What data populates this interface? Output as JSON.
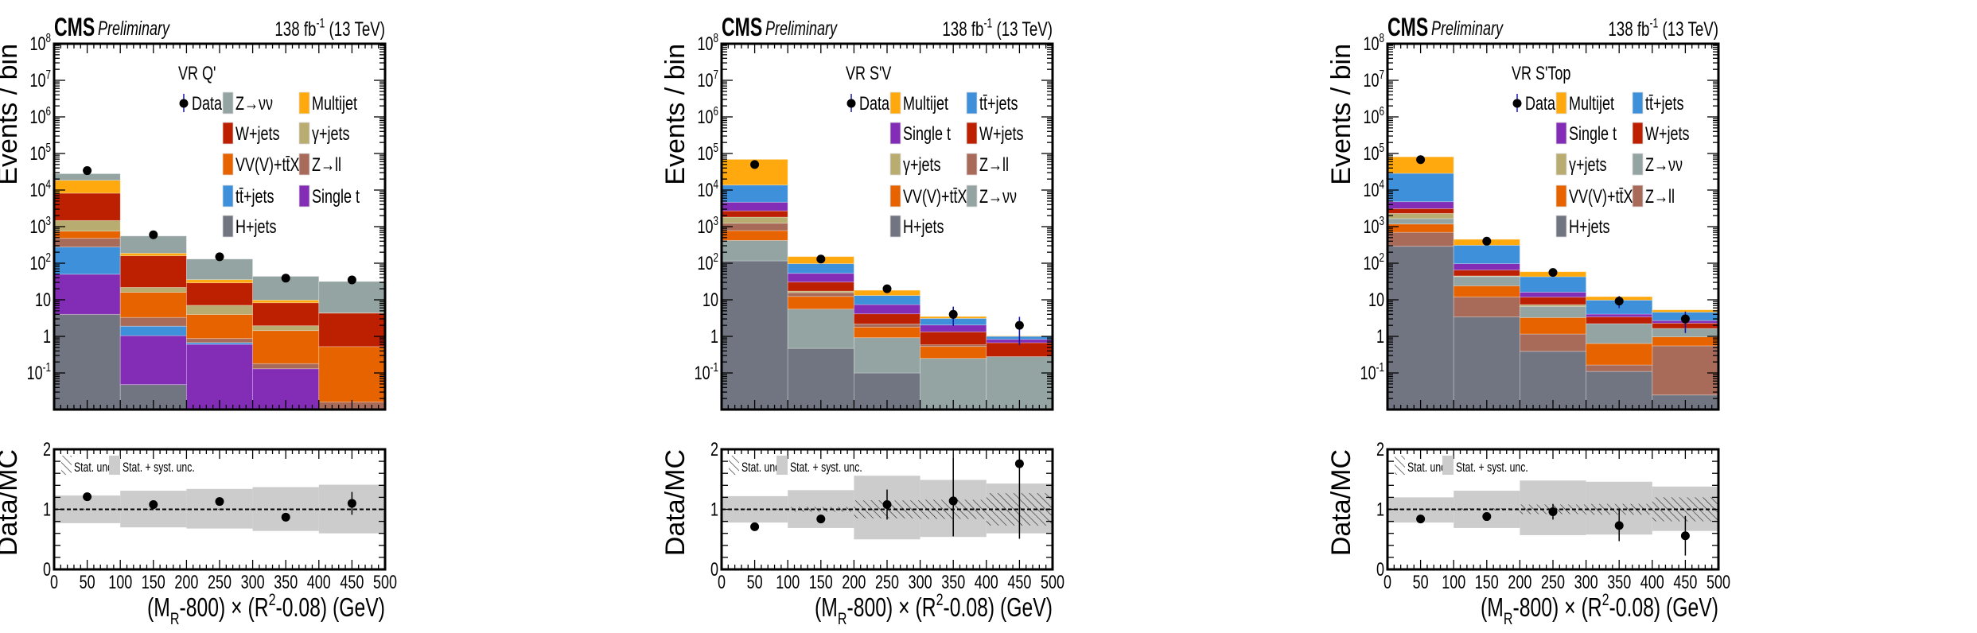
{
  "figure": {
    "experiment_label": "CMS",
    "status_label": "Preliminary",
    "lumi_label": "138 fb^{-1} (13 TeV)",
    "ylabel": "Events / bin",
    "ratio_ylabel": "Data/MC",
    "xlabel": "(M_{R}-800) × (R^{2}-0.08) (GeV)",
    "x_tick_labels": [
      "0",
      "50",
      "100",
      "150",
      "200",
      "250",
      "300",
      "350",
      "400",
      "450",
      "500"
    ],
    "y_tick_labels": [
      "10^{-1}",
      "1",
      "10",
      "10^{2}",
      "10^{3}",
      "10^{4}",
      "10^{5}",
      "10^{6}",
      "10^{7}",
      "10^{8}"
    ],
    "ratio_tick_labels": [
      "0",
      "1",
      "2"
    ],
    "ratio_legend": {
      "stat": "Stat. unc.",
      "syst": "Stat. + syst. unc."
    },
    "data_legend_label": "Data",
    "colors": {
      "Z→νν": "#94a4a2",
      "W+jets": "#bd1f01",
      "VV(V)+tt̄X": "#e76300",
      "tt̄+jets": "#3f90da",
      "H+jets": "#717581",
      "Multijet": "#ffa90e",
      "γ+jets": "#b9ac70",
      "Z→ll": "#a96b59",
      "Single t": "#832db6",
      "stat_syst_band": "#cccccc",
      "data_err_top": "#1a1aa8"
    }
  },
  "chart_data": [
    {
      "type": "bar",
      "stacked": true,
      "region_label": "VR Q'",
      "x_bin_edges": [
        0,
        100,
        200,
        300,
        400,
        500
      ],
      "xlim": [
        0,
        500
      ],
      "ylim": [
        0.01,
        100000000
      ],
      "y_scale": "log",
      "ratio_ylim": [
        0,
        2
      ],
      "legend_order": [
        "Z→νν",
        "Multijet",
        "W+jets",
        "γ+jets",
        "VV(V)+tt̄X",
        "Z→ll",
        "tt̄+jets",
        "Single t",
        "H+jets"
      ],
      "series": [
        {
          "name": "H+jets",
          "values": [
            4.0,
            0.048,
            0.005,
            0.005,
            0.005
          ]
        },
        {
          "name": "Single t",
          "values": [
            46,
            1.0,
            0.6,
            0.125,
            0
          ]
        },
        {
          "name": "tt̄+jets",
          "values": [
            227,
            0.85,
            0.07,
            0,
            0
          ]
        },
        {
          "name": "Z→ll",
          "values": [
            203,
            1.4,
            0.2,
            0.05,
            0.011
          ]
        },
        {
          "name": "VV(V)+tt̄X",
          "values": [
            275,
            12.7,
            3.1,
            1.26,
            0.51
          ]
        },
        {
          "name": "γ+jets",
          "values": [
            715,
            5.8,
            3.1,
            0.51,
            0
          ]
        },
        {
          "name": "W+jets",
          "values": [
            6730,
            138,
            22,
            6.35,
            3.8
          ]
        },
        {
          "name": "Multijet",
          "values": [
            10300,
            28,
            6.5,
            1.5,
            0.05
          ]
        },
        {
          "name": "Z→νν",
          "values": [
            9500,
            367,
            94.5,
            34,
            27.3
          ]
        }
      ],
      "data": [
        34000,
        600,
        150,
        39,
        35
      ],
      "ratio": {
        "values": [
          1.21,
          1.08,
          1.13,
          0.87,
          1.1
        ],
        "err_low": [
          0.01,
          0.04,
          0.06,
          0.07,
          0.19
        ],
        "err_high": [
          0.01,
          0.04,
          0.06,
          0.07,
          0.19
        ],
        "stat_unc": [
          0.01,
          0.01,
          0.01,
          0.01,
          0.01
        ],
        "syst_band_low": [
          0.77,
          0.7,
          0.68,
          0.64,
          0.6
        ],
        "syst_band_high": [
          1.23,
          1.31,
          1.34,
          1.37,
          1.41
        ]
      }
    },
    {
      "type": "bar",
      "stacked": true,
      "region_label": "VR S'V",
      "x_bin_edges": [
        0,
        100,
        200,
        300,
        400,
        500
      ],
      "xlim": [
        0,
        500
      ],
      "ylim": [
        0.01,
        100000000
      ],
      "y_scale": "log",
      "ratio_ylim": [
        0,
        2
      ],
      "legend_order": [
        "Multijet",
        "tt̄+jets",
        "Single t",
        "W+jets",
        "γ+jets",
        "Z→ll",
        "VV(V)+tt̄X",
        "Z→νν",
        "H+jets"
      ],
      "series": [
        {
          "name": "H+jets",
          "values": [
            116,
            0.47,
            0.1,
            0.005,
            0.005
          ]
        },
        {
          "name": "Z→νν",
          "values": [
            304,
            5.1,
            0.82,
            0.245,
            0.275
          ]
        },
        {
          "name": "VV(V)+tt̄X",
          "values": [
            360,
            6.8,
            0.87,
            0.28,
            0
          ]
        },
        {
          "name": "Z→ll",
          "values": [
            460,
            3.3,
            0.4,
            0.06,
            0
          ]
        },
        {
          "name": "γ+jets",
          "values": [
            580,
            1.6,
            0,
            0,
            0
          ]
        },
        {
          "name": "W+jets",
          "values": [
            880,
            13.3,
            1.94,
            0.74,
            0.39
          ]
        },
        {
          "name": "Single t",
          "values": [
            1960,
            22.4,
            3.27,
            0.72,
            0.16
          ]
        },
        {
          "name": "tt̄+jets",
          "values": [
            9040,
            44,
            5.7,
            1.05,
            0.17
          ]
        },
        {
          "name": "Multijet",
          "values": [
            55300,
            55,
            5.1,
            0.4,
            0.03
          ]
        }
      ],
      "data": [
        50000,
        130,
        20,
        4,
        2
      ],
      "ratio": {
        "values": [
          0.71,
          0.84,
          1.08,
          1.14,
          1.76
        ],
        "err_low": [
          0.01,
          0.07,
          0.25,
          0.59,
          1.25
        ],
        "err_high": [
          0.01,
          0.07,
          0.25,
          0.71,
          1.25
        ],
        "stat_unc": [
          0.01,
          0.04,
          0.15,
          0.16,
          0.27
        ],
        "syst_band_low": [
          0.78,
          0.69,
          0.5,
          0.54,
          0.6
        ],
        "syst_band_high": [
          1.22,
          1.32,
          1.56,
          1.49,
          1.43
        ]
      }
    },
    {
      "type": "bar",
      "stacked": true,
      "region_label": "VR S'Top",
      "x_bin_edges": [
        0,
        100,
        200,
        300,
        400,
        500
      ],
      "xlim": [
        0,
        500
      ],
      "ylim": [
        0.01,
        100000000
      ],
      "y_scale": "log",
      "ratio_ylim": [
        0,
        2
      ],
      "legend_order": [
        "Multijet",
        "tt̄+jets",
        "Single t",
        "W+jets",
        "γ+jets",
        "Z→νν",
        "VV(V)+tt̄X",
        "Z→ll",
        "H+jets"
      ],
      "series": [
        {
          "name": "H+jets",
          "values": [
            290,
            3.4,
            0.39,
            0.11,
            0.025
          ]
        },
        {
          "name": "Z→ll",
          "values": [
            410,
            8.6,
            0.77,
            0.055,
            0.525
          ]
        },
        {
          "name": "VV(V)+tt̄X",
          "values": [
            480,
            12,
            2.11,
            0.475,
            0.42
          ]
        },
        {
          "name": "Z→νν",
          "values": [
            480,
            19,
            3.33,
            1.59,
            0.68
          ]
        },
        {
          "name": "γ+jets",
          "values": [
            640,
            2,
            0.8,
            0,
            0
          ]
        },
        {
          "name": "W+jets",
          "values": [
            800,
            20,
            4.4,
            1.17,
            0.65
          ]
        },
        {
          "name": "Single t",
          "values": [
            1700,
            32,
            4.4,
            0.66,
            0.4
          ]
        },
        {
          "name": "tt̄+jets",
          "values": [
            23800,
            213,
            26.5,
            5.74,
            1.9
          ]
        },
        {
          "name": "Multijet",
          "values": [
            52400,
            140,
            15.8,
            2.4,
            0.7
          ]
        }
      ],
      "data": [
        68000,
        400,
        56,
        9.2,
        3.0
      ],
      "ratio": {
        "values": [
          0.84,
          0.88,
          0.96,
          0.73,
          0.56
        ],
        "err_low": [
          0.01,
          0.03,
          0.13,
          0.26,
          0.33
        ],
        "err_high": [
          0.01,
          0.03,
          0.13,
          0.27,
          0.33
        ],
        "stat_unc": [
          0.01,
          0.02,
          0.08,
          0.09,
          0.2
        ],
        "syst_band_low": [
          0.78,
          0.69,
          0.57,
          0.58,
          0.64
        ],
        "syst_band_high": [
          1.2,
          1.31,
          1.48,
          1.46,
          1.38
        ]
      }
    }
  ]
}
